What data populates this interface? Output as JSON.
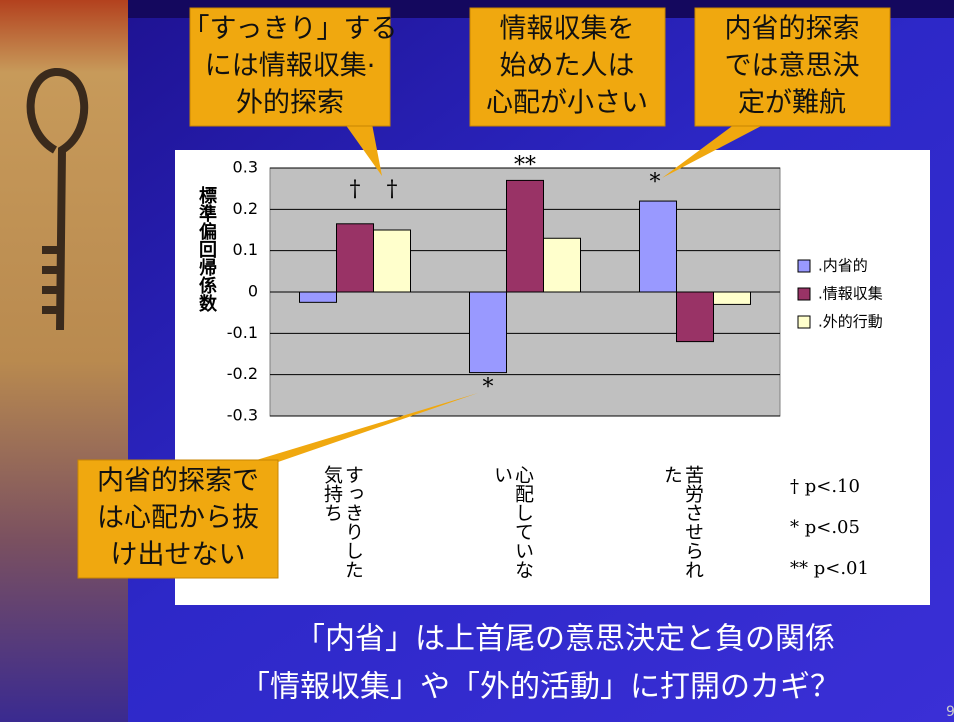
{
  "callouts": [
    {
      "lines": [
        "「すっきり」する",
        "には情報収集·",
        "外的探索"
      ]
    },
    {
      "lines": [
        "情報収集を",
        "始めた人は",
        "心配が小さい"
      ]
    },
    {
      "lines": [
        "内省的探索",
        "では意思決",
        "定が難航"
      ]
    },
    {
      "lines": [
        "内省的探索で",
        "は心配から抜",
        "け出せない"
      ]
    }
  ],
  "notes": [
    "†  p<.10",
    "*  p<.05",
    "**  p<.01"
  ],
  "footer": [
    "「内省」は上首尾の意思決定と負の関係",
    "「情報収集」や「外的活動」に打開のカギ？"
  ],
  "page_number": "9",
  "chart_data": {
    "type": "bar",
    "y_label": "標準偏回帰係数",
    "categories": [
      "すっきりした気持ち",
      "心配していない",
      "苦労させられた"
    ],
    "series": [
      {
        "name": ".内省的",
        "color": "#9999ff",
        "values": [
          -0.025,
          -0.195,
          0.22
        ]
      },
      {
        "name": ".情報収集",
        "color": "#993366",
        "values": [
          0.165,
          0.27,
          -0.12
        ]
      },
      {
        "name": ".外的行動",
        "color": "#ffffcc",
        "values": [
          0.15,
          0.13,
          -0.03
        ]
      }
    ],
    "ylim": [
      -0.3,
      0.3
    ],
    "yticks": [
      0.3,
      0.2,
      0.1,
      0,
      -0.1,
      -0.2,
      -0.3
    ],
    "grid": true,
    "legend": "right",
    "annotations": [
      "†",
      "†",
      "**",
      "*",
      "*"
    ]
  }
}
